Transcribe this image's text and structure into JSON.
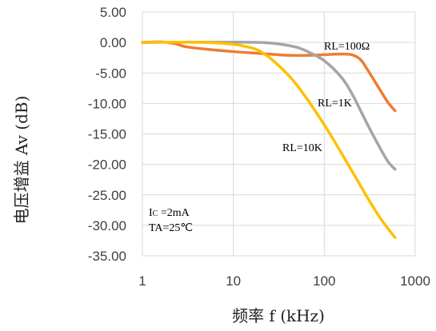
{
  "chart_data": {
    "type": "line",
    "xlabel": "频率 f (kHz)",
    "ylabel": "电压增益 Av (dB)",
    "x_scale": "log",
    "xlim": [
      1,
      1000
    ],
    "ylim": [
      -35,
      5
    ],
    "x_ticks": [
      "1",
      "10",
      "100",
      "1000"
    ],
    "y_ticks": [
      "5.00",
      "0.00",
      "-5.00",
      "-10.00",
      "-15.00",
      "-20.00",
      "-25.00",
      "-30.00",
      "-35.00"
    ],
    "grid": true,
    "series": [
      {
        "name": "RL=100Ω",
        "color": "#ED7D31",
        "x": [
          1,
          1.6,
          2.3,
          3,
          5,
          10,
          20,
          40,
          70,
          100,
          150,
          200,
          250,
          300,
          400,
          500,
          600
        ],
        "y": [
          0,
          0.1,
          -0.2,
          -0.7,
          -1.1,
          -1.5,
          -1.8,
          -2.1,
          -2.1,
          -2.0,
          -1.9,
          -2.0,
          -2.8,
          -4.5,
          -7.5,
          -9.8,
          -11.2
        ]
      },
      {
        "name": "RL=1K",
        "color": "#A5A5A5",
        "x": [
          1,
          2,
          5,
          10,
          20,
          30,
          50,
          70,
          100,
          150,
          200,
          300,
          400,
          500,
          600
        ],
        "y": [
          0,
          0.05,
          0.05,
          0.05,
          0,
          -0.2,
          -0.8,
          -1.7,
          -3.0,
          -5.5,
          -8.3,
          -13.5,
          -17.0,
          -19.5,
          -20.8
        ]
      },
      {
        "name": "RL=10K",
        "color": "#FFC000",
        "x": [
          1,
          2,
          5,
          10,
          15,
          20,
          30,
          50,
          100,
          200,
          300,
          400,
          500,
          600
        ],
        "y": [
          0,
          0.05,
          0,
          -0.3,
          -0.8,
          -1.5,
          -3.5,
          -7.0,
          -13.5,
          -21.0,
          -25.5,
          -28.5,
          -30.5,
          -32.0
        ]
      }
    ],
    "annotations": {
      "ic_main": "I",
      "ic_sub": "C",
      "ic_rest": " =2mA",
      "ta": "TA=25℃"
    }
  }
}
